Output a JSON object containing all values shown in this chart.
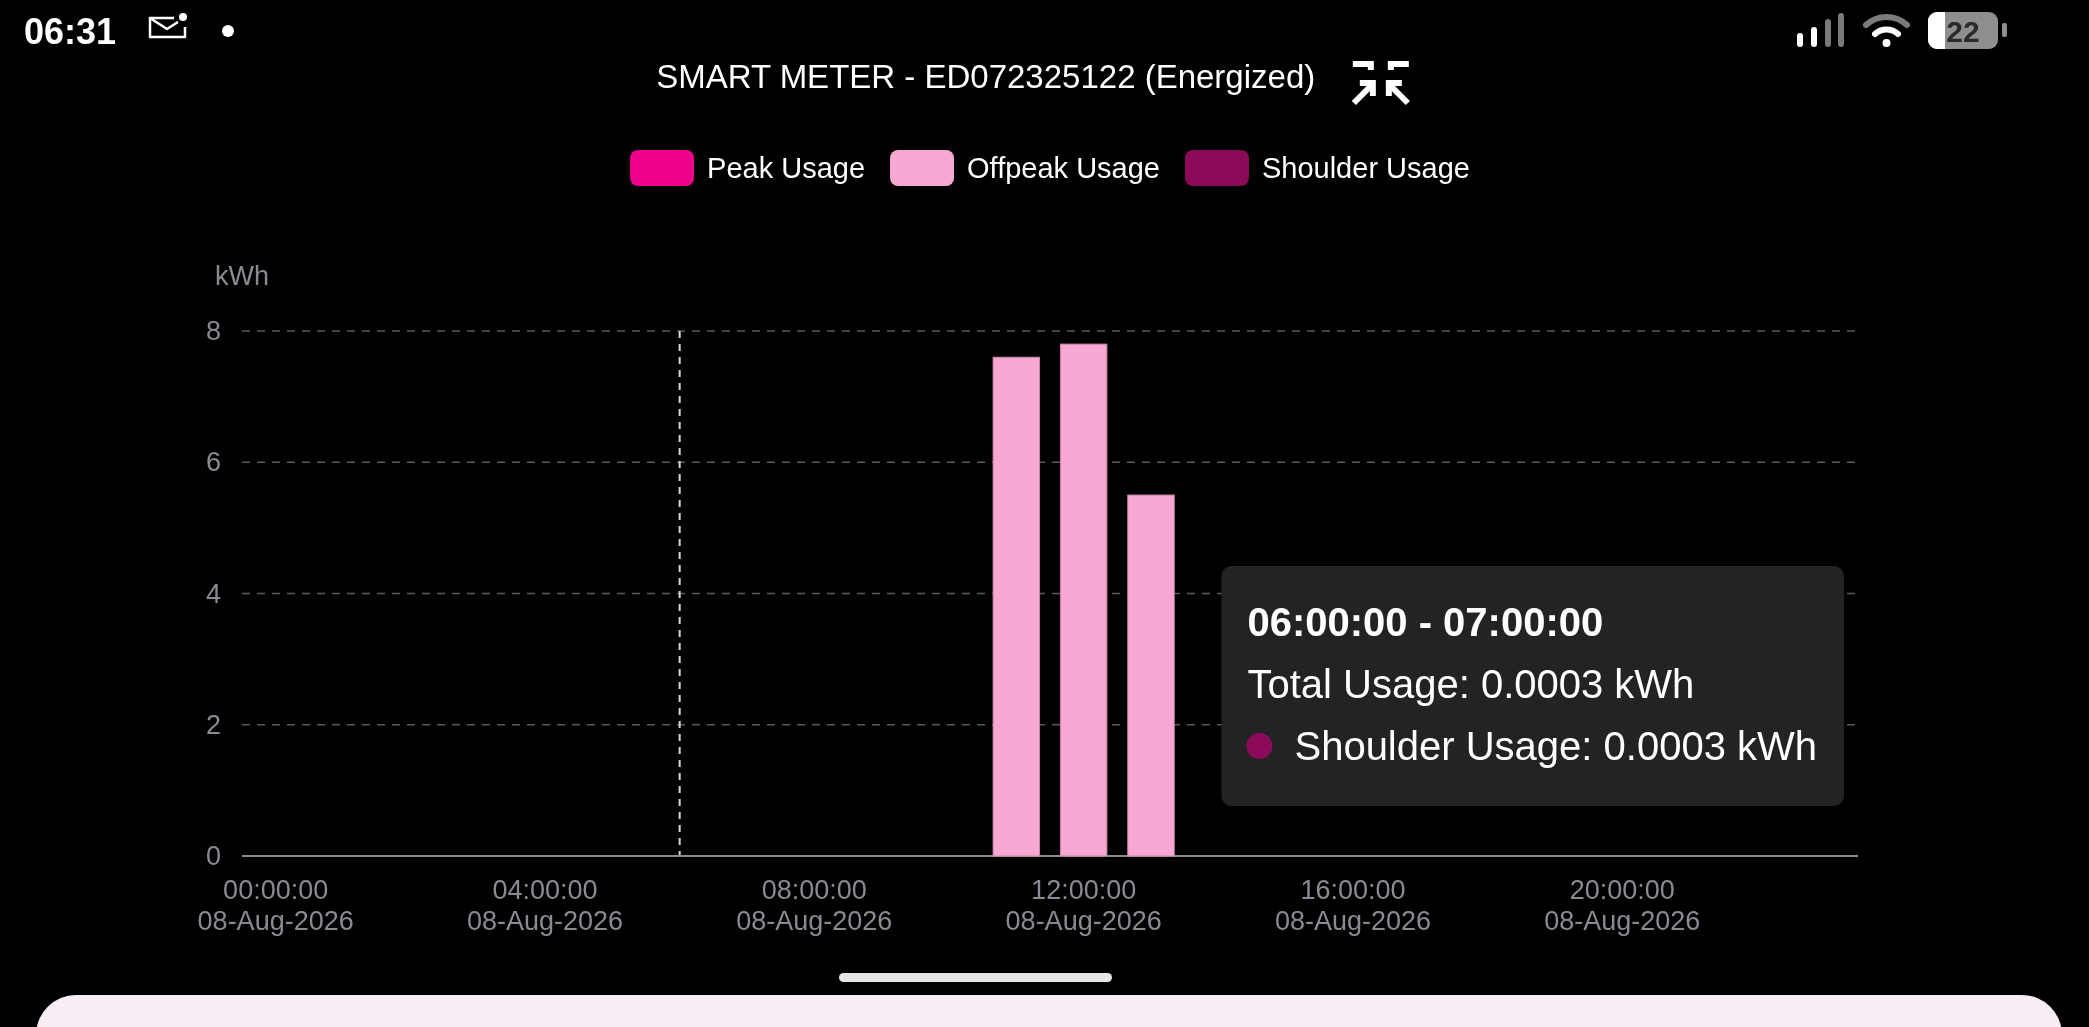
{
  "chart_data": {
    "type": "bar",
    "title": "SMART METER - ED072325122 (Energized)",
    "ylabel": "kWh",
    "categories": [
      "00:00:00\n08-Aug-2026",
      null,
      null,
      null,
      "04:00:00\n08-Aug-2026",
      null,
      null,
      null,
      "08:00:00\n08-Aug-2026",
      null,
      null,
      null,
      "12:00:00\n08-Aug-2026",
      null,
      null,
      null,
      "16:00:00\n08-Aug-2026",
      null,
      null,
      null,
      "20:00:00\n08-Aug-2026",
      null,
      null,
      null
    ],
    "ylim": [
      0,
      8
    ],
    "yticks": [
      0,
      2,
      4,
      6,
      8
    ],
    "grid": "y",
    "legend": "top",
    "stacked": true,
    "series": [
      {
        "name": "Peak Usage",
        "color": "#ec008c",
        "values": [
          null,
          null,
          null,
          null,
          null,
          null,
          null,
          null,
          null,
          null,
          null,
          null,
          null,
          null,
          null,
          null,
          null,
          null,
          null,
          null,
          null,
          null,
          null,
          null
        ]
      },
      {
        "name": "Offpeak Usage",
        "color": "#f9a8d4",
        "values": [
          null,
          null,
          null,
          null,
          null,
          null,
          null,
          null,
          null,
          null,
          null,
          7.6,
          7.8,
          5.5,
          null,
          null,
          null,
          null,
          null,
          null,
          null,
          null,
          null,
          null
        ]
      },
      {
        "name": "Shoulder Usage",
        "color": "#8b0a5a",
        "values": [
          null,
          null,
          null,
          null,
          null,
          null,
          null,
          null,
          null,
          null,
          null,
          null,
          null,
          null,
          null,
          null,
          null,
          null,
          null,
          null,
          null,
          null,
          null,
          null
        ]
      }
    ],
    "annotations": [
      "06:00:00 - 07:00:00",
      "Total Usage: 0.0003 kWh",
      "Shoulder Usage: 0.0003 kWh",
      "06:31",
      "22"
    ]
  }
}
